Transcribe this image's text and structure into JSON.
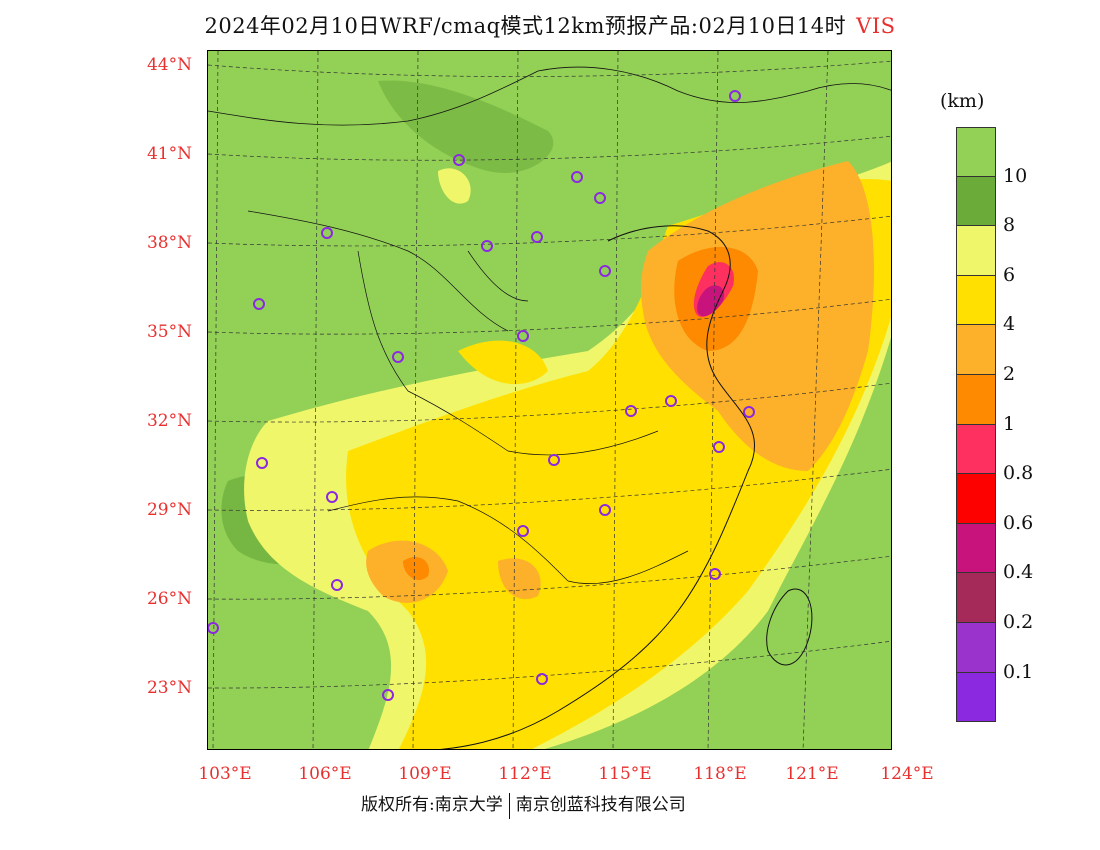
{
  "title": {
    "text": "2024年02月10日WRF/cmaq模式12km预报产品:02月10日14时",
    "variable": "VIS"
  },
  "axes": {
    "lat_labels": [
      "44°N",
      "41°N",
      "38°N",
      "35°N",
      "32°N",
      "29°N",
      "26°N",
      "23°N"
    ],
    "lon_labels": [
      "103°E",
      "106°E",
      "109°E",
      "112°E",
      "115°E",
      "118°E",
      "121°E",
      "124°E"
    ]
  },
  "legend": {
    "unit": "(km)",
    "colors": [
      "#93d056",
      "#6aab3a",
      "#f0f66a",
      "#ffe000",
      "#fdb02a",
      "#fd8a00",
      "#fd3060",
      "#fd0000",
      "#c8137d",
      "#a52a5a",
      "#9a33cc",
      "#8a29e0"
    ],
    "labels": [
      "10",
      "8",
      "6",
      "4",
      "2",
      "1",
      "0.8",
      "0.6",
      "0.4",
      "0.2",
      "0.1"
    ]
  },
  "footer": {
    "left": "版权所有:南京大学",
    "right": "南京创蓝科技有限公司"
  }
}
